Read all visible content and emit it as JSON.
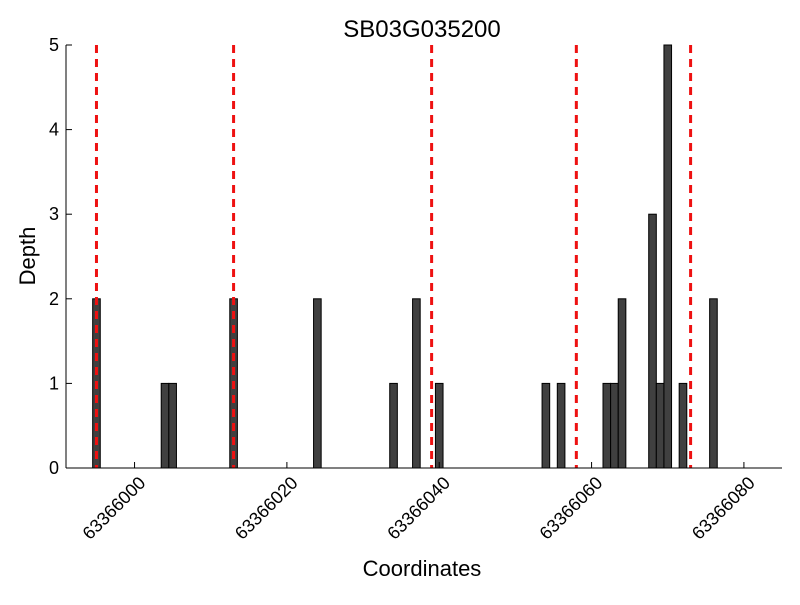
{
  "chart_data": {
    "type": "bar",
    "title": "SB03G035200",
    "xlabel": "Coordinates",
    "ylabel": "Depth",
    "xlim": [
      63365991,
      63366085
    ],
    "ylim": [
      0,
      5
    ],
    "x_ticks": [
      63366000,
      63366020,
      63366040,
      63366060,
      63366080
    ],
    "y_ticks": [
      0,
      1,
      2,
      3,
      4,
      5
    ],
    "bar_width": 1,
    "grid": false,
    "bar_color": "#404040",
    "bar_edge_color": "#000000",
    "marker_color": "#ee1111",
    "series": [
      {
        "x": [
          63365995,
          63366004,
          63366005,
          63366013,
          63366024,
          63366034,
          63366037,
          63366040,
          63366054,
          63366056,
          63366062,
          63366063,
          63366064,
          63366068,
          63366069,
          63366070,
          63366072,
          63366076
        ],
        "values": [
          2,
          1,
          1,
          2,
          2,
          1,
          2,
          1,
          1,
          1,
          1,
          1,
          2,
          3,
          1,
          5,
          1,
          2
        ]
      }
    ],
    "vertical_markers": [
      63365995,
      63366013,
      63366039,
      63366058,
      63366073
    ]
  }
}
